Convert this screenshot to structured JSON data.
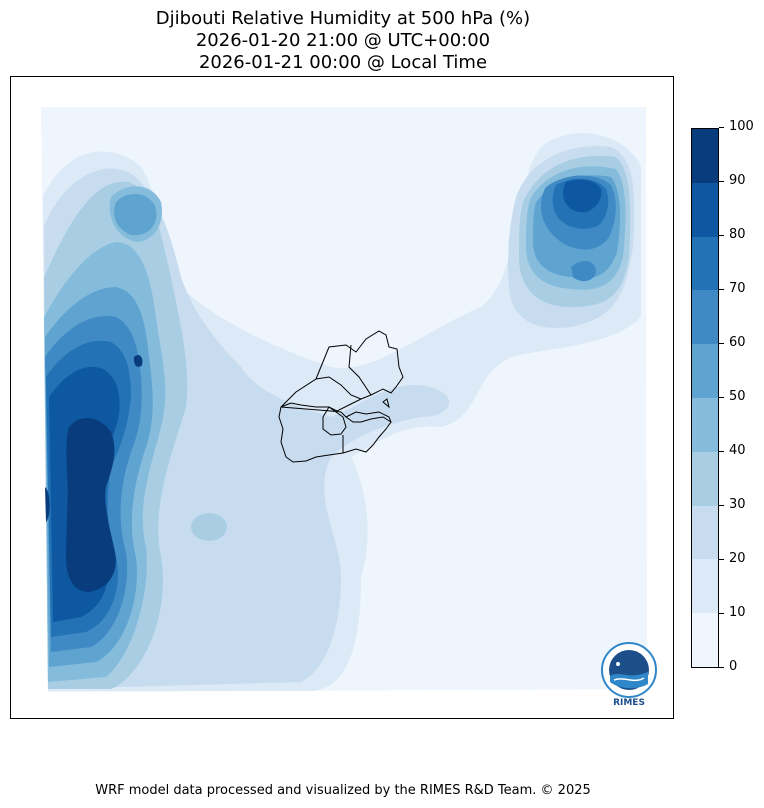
{
  "title": {
    "line1": "Djibouti Relative Humidity at 500 hPa (%)",
    "line2": "2026-01-20 21:00 @ UTC+00:00",
    "line3": "2026-01-21 00:00 @ Local Time"
  },
  "colorbar": {
    "levels": [
      0,
      10,
      20,
      30,
      40,
      50,
      60,
      70,
      80,
      90,
      100
    ],
    "tick_labels": [
      "0",
      "10",
      "20",
      "30",
      "40",
      "50",
      "60",
      "70",
      "80",
      "90",
      "100"
    ],
    "colors": [
      "#f0f6fd",
      "#dce9f6",
      "#c8dcf0",
      "#a9cee4",
      "#85bcdc",
      "#5fa3d0",
      "#3f8ac4",
      "#2272b5",
      "#0d58a1",
      "#083c7c"
    ]
  },
  "logo": {
    "text": "RIMES",
    "colors": {
      "primary": "#1c4f8a",
      "accent": "#2f86c8"
    }
  },
  "footer": "WRF model data processed and visualized by the RIMES R&D Team. © 2025"
}
